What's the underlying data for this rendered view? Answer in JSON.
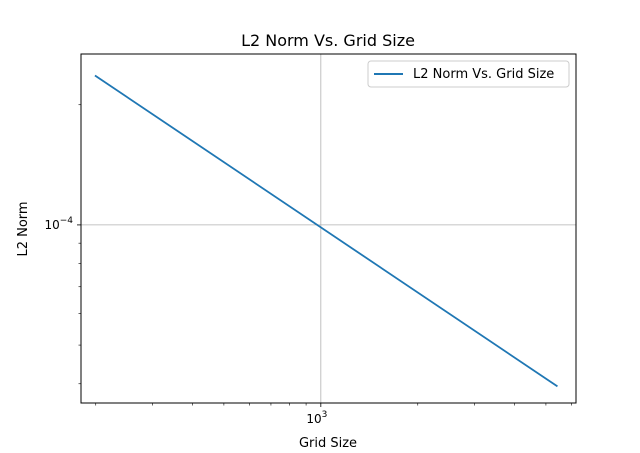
{
  "chart_data": {
    "type": "line",
    "title": "L2 Norm Vs. Grid Size",
    "xlabel": "Grid Size",
    "ylabel": "L2 Norm",
    "xscale": "log",
    "yscale": "log",
    "xlim": [
      180,
      6200
    ],
    "ylim": [
      3.58e-05,
      0.000268
    ],
    "grid": true,
    "legend_position": "upper right",
    "x_tick_labels": [
      {
        "value": 1000,
        "base": "10",
        "exp": "3"
      }
    ],
    "y_tick_labels": [
      {
        "value": 0.0001,
        "base": "10",
        "exp": "−4"
      }
    ],
    "series": [
      {
        "name": "L2 Norm Vs. Grid Size",
        "color": "#1f77b4",
        "x": [
          200,
          5400
        ],
        "y": [
          0.000236,
          3.95e-05
        ]
      }
    ]
  }
}
